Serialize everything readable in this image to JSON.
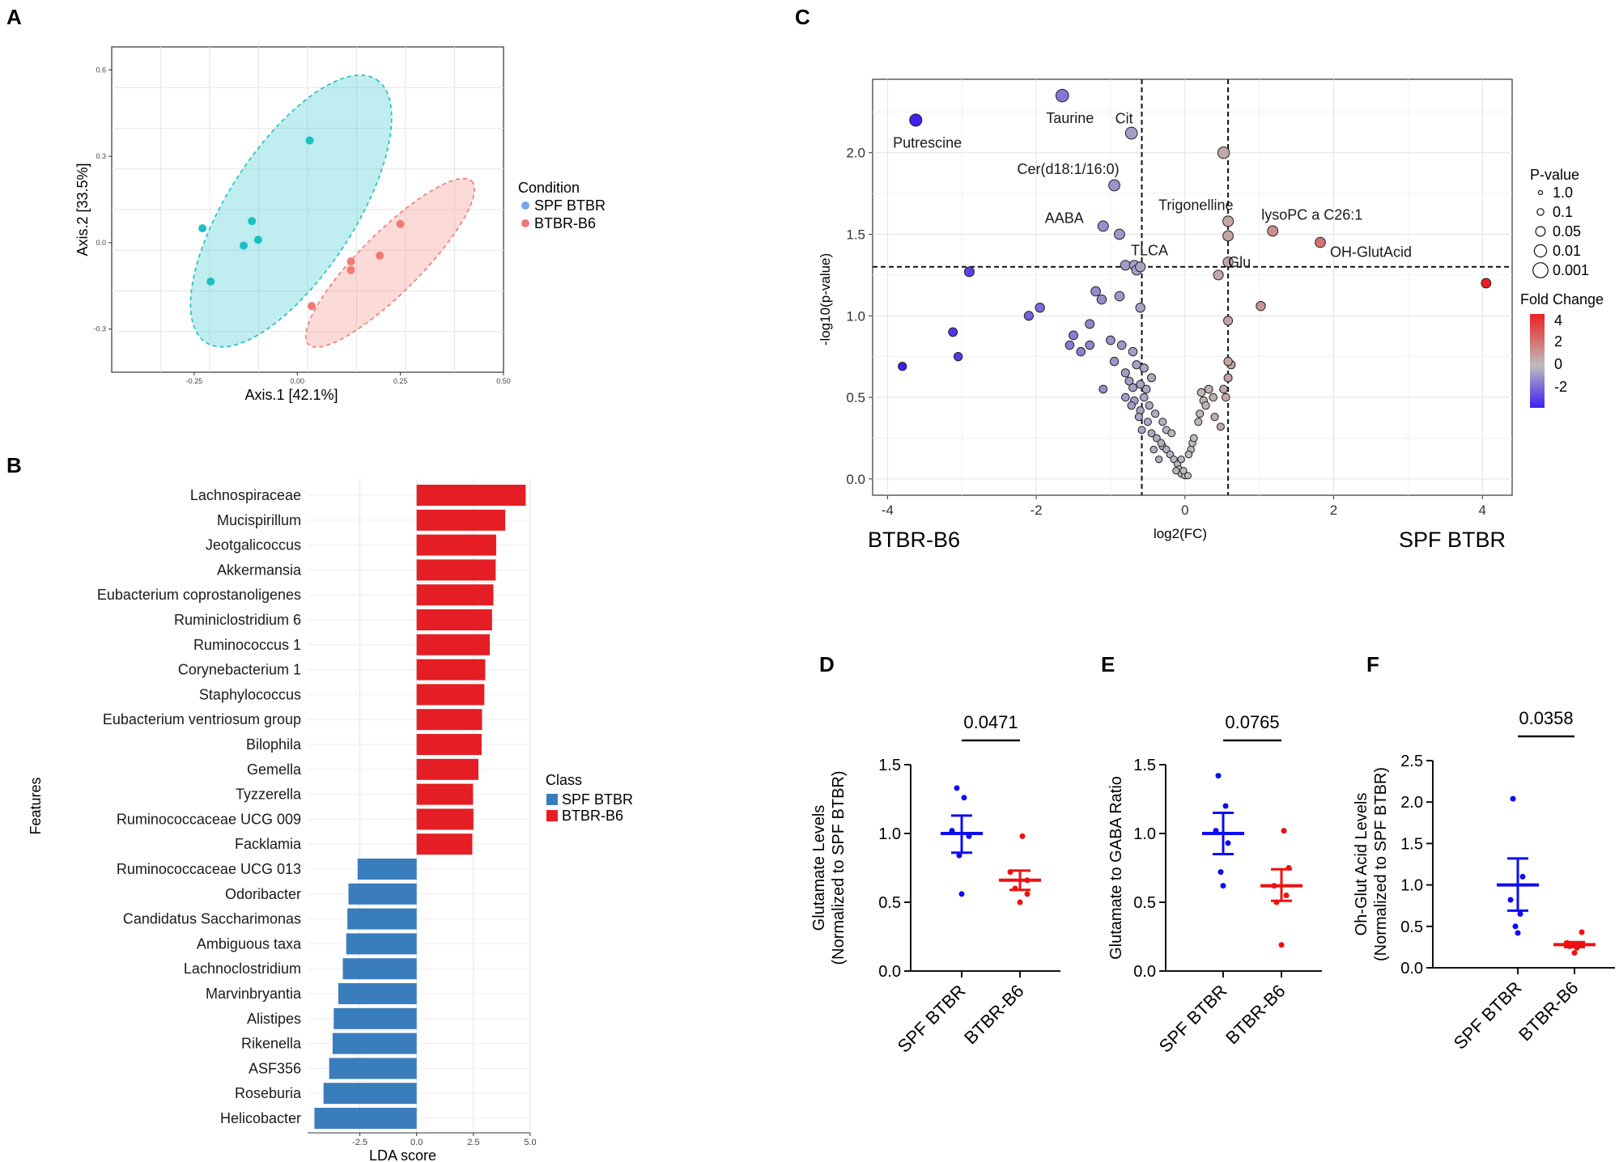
{
  "panel_labels": {
    "A": "A",
    "B": "B",
    "C": "C",
    "D": "D",
    "E": "E",
    "F": "F"
  },
  "colors": {
    "spf_teal": "#1cbfc4",
    "b6_salmon": "#f07a73",
    "lda_red": "#e41e24",
    "lda_blue": "#3a7dbd",
    "stat_blue": "#0d0df0",
    "stat_red": "#ee1111"
  },
  "chart_data": [
    {
      "id": "A",
      "type": "scatter",
      "xlabel": "Axis.1 [42.1%]",
      "ylabel": "Axis.2 [33.5%]",
      "xlim": [
        -0.45,
        0.5
      ],
      "ylim": [
        -0.45,
        0.68
      ],
      "x_ticks": [
        {
          "v": -0.25,
          "label": "-0.25"
        },
        {
          "v": 0.0,
          "label": "0.00"
        },
        {
          "v": 0.25,
          "label": "0.25"
        },
        {
          "v": 0.5,
          "label": "0.50"
        }
      ],
      "y_ticks": [
        {
          "v": -0.3,
          "label": "-0.3"
        },
        {
          "v": 0.0,
          "label": "0.0"
        },
        {
          "v": 0.3,
          "label": "0.3"
        },
        {
          "v": 0.6,
          "label": "0.6"
        }
      ],
      "grid": true,
      "legend_title": "Condition",
      "series": [
        {
          "name": "SPF BTBR",
          "color": "#1cbfc4",
          "legend_color": "#6fa8f0",
          "points": [
            [
              0.03,
              0.355
            ],
            [
              -0.23,
              0.05
            ],
            [
              -0.11,
              0.075
            ],
            [
              -0.13,
              -0.01
            ],
            [
              -0.095,
              0.01
            ],
            [
              -0.21,
              -0.135
            ]
          ],
          "ellipse": {
            "cx": -0.015,
            "cy": 0.11,
            "rx": 0.38,
            "ry": 0.22,
            "rot_deg": 57
          }
        },
        {
          "name": "BTBR-B6",
          "color": "#f07a73",
          "legend_color": "#f07a73",
          "points": [
            [
              0.25,
              0.065
            ],
            [
              0.2,
              -0.045
            ],
            [
              0.13,
              -0.065
            ],
            [
              0.13,
              -0.095
            ],
            [
              0.035,
              -0.22
            ]
          ],
          "ellipse": {
            "cx": 0.225,
            "cy": -0.07,
            "rx": 0.28,
            "ry": 0.105,
            "rot_deg": 45
          }
        }
      ]
    },
    {
      "id": "B",
      "type": "bar",
      "orientation": "horizontal",
      "xlabel": "LDA score",
      "ylabel": "Features",
      "xlim": [
        -4.8,
        5.0
      ],
      "x_ticks": [
        {
          "v": -2.5,
          "label": "-2.5"
        },
        {
          "v": 0.0,
          "label": "0.0"
        },
        {
          "v": 2.5,
          "label": "2.5"
        },
        {
          "v": 5.0,
          "label": "5.0"
        }
      ],
      "grid": true,
      "legend_title": "Class",
      "legend": [
        {
          "name": "SPF BTBR",
          "color": "#3a7dbd"
        },
        {
          "name": "BTBR-B6",
          "color": "#e41e24"
        }
      ],
      "categories": [
        "Lachnospiraceae",
        "Mucispirillum",
        "Jeotgalicoccus",
        "Akkermansia",
        "Eubacterium coprostanoligenes",
        "Ruminiclostridium 6",
        "Ruminococcus 1",
        "Corynebacterium 1",
        "Staphylococcus",
        "Eubacterium ventriosum group",
        "Bilophila",
        "Gemella",
        "Tyzzerella",
        "Ruminococcaceae UCG 009",
        "Facklamia",
        "Ruminococcaceae UCG 013",
        "Odoribacter",
        "Candidatus Saccharimonas",
        "Ambiguous taxa",
        "Lachnoclostridium",
        "Marvinbryantia",
        "Alistipes",
        "Rikenella",
        "ASF356",
        "Roseburia",
        "Helicobacter"
      ],
      "values": [
        4.8,
        3.9,
        3.5,
        3.48,
        3.38,
        3.32,
        3.22,
        3.02,
        2.98,
        2.88,
        2.86,
        2.72,
        2.48,
        2.5,
        2.45,
        -2.6,
        -3.0,
        -3.05,
        -3.1,
        -3.25,
        -3.45,
        -3.65,
        -3.7,
        -3.85,
        -4.1,
        -4.5
      ],
      "classes": [
        "BTBR-B6",
        "BTBR-B6",
        "BTBR-B6",
        "BTBR-B6",
        "BTBR-B6",
        "BTBR-B6",
        "BTBR-B6",
        "BTBR-B6",
        "BTBR-B6",
        "BTBR-B6",
        "BTBR-B6",
        "BTBR-B6",
        "BTBR-B6",
        "BTBR-B6",
        "BTBR-B6",
        "SPF BTBR",
        "SPF BTBR",
        "SPF BTBR",
        "SPF BTBR",
        "SPF BTBR",
        "SPF BTBR",
        "SPF BTBR",
        "SPF BTBR",
        "SPF BTBR",
        "SPF BTBR",
        "SPF BTBR"
      ]
    },
    {
      "id": "C",
      "type": "scatter",
      "title": "",
      "xlabel": "log2(FC)",
      "ylabel": "-log10(p-value)",
      "left_label": "BTBR-B6",
      "right_label": "SPF BTBR",
      "xlim": [
        -4.2,
        4.4
      ],
      "ylim": [
        -0.1,
        2.45
      ],
      "x_ticks": [
        {
          "v": -4,
          "label": "-4"
        },
        {
          "v": -2,
          "label": "-2"
        },
        {
          "v": 0,
          "label": "0"
        },
        {
          "v": 2,
          "label": "2"
        },
        {
          "v": 4,
          "label": "4"
        }
      ],
      "y_ticks": [
        {
          "v": 0.0,
          "label": "0.0"
        },
        {
          "v": 0.5,
          "label": "0.5"
        },
        {
          "v": 1.0,
          "label": "1.0"
        },
        {
          "v": 1.5,
          "label": "1.5"
        },
        {
          "v": 2.0,
          "label": "2.0"
        }
      ],
      "grid": true,
      "thresholds": {
        "x": [
          -0.58,
          0.58
        ],
        "y": 1.3
      },
      "size_legend_title": "P-value",
      "size_legend": [
        "1.0",
        "0.1",
        "0.05",
        "0.01",
        "0.001"
      ],
      "color_legend_title": "Fold Change",
      "color_legend_ticks": [
        "4",
        "2",
        "0",
        "-2"
      ],
      "labels": [
        {
          "text": "Putrescine",
          "x": -3.6,
          "y": 2.2
        },
        {
          "text": "Taurine",
          "x": -1.65,
          "y": 2.35
        },
        {
          "text": "Cit",
          "x": -0.72,
          "y": 2.12
        },
        {
          "text": "Cer(d18:1/16:0)",
          "x": -0.95,
          "y": 1.8
        },
        {
          "text": "AABA",
          "x": -1.1,
          "y": 1.55
        },
        {
          "text": "TLCA",
          "x": -0.88,
          "y": 1.5
        },
        {
          "text": "Trigonelline",
          "x": 0.58,
          "y": 1.58
        },
        {
          "text": "lysoPC a C26:1",
          "x": 1.18,
          "y": 1.52
        },
        {
          "text": "Glu",
          "x": 0.58,
          "y": 1.33
        },
        {
          "text": "OH-GlutAcid",
          "x": 1.82,
          "y": 1.45
        }
      ],
      "points": [
        [
          -3.62,
          2.2,
          0.006
        ],
        [
          -1.65,
          2.35,
          0.004
        ],
        [
          -0.72,
          2.12,
          0.008
        ],
        [
          -0.95,
          1.8,
          0.016
        ],
        [
          -1.1,
          1.55,
          0.028
        ],
        [
          -0.88,
          1.5,
          0.032
        ],
        [
          0.52,
          2.0,
          0.01
        ],
        [
          0.58,
          1.58,
          0.026
        ],
        [
          1.18,
          1.52,
          0.03
        ],
        [
          0.58,
          1.33,
          0.047
        ],
        [
          1.82,
          1.45,
          0.035
        ],
        [
          4.05,
          1.2,
          0.063
        ],
        [
          -2.9,
          1.27,
          0.054
        ],
        [
          -0.8,
          1.31,
          0.049
        ],
        [
          -0.68,
          1.31,
          0.049
        ],
        [
          -0.65,
          1.28,
          0.052
        ],
        [
          -0.6,
          1.3,
          0.05
        ],
        [
          0.45,
          1.25,
          0.056
        ],
        [
          0.58,
          1.49,
          0.032
        ],
        [
          1.02,
          1.06,
          0.087
        ],
        [
          -1.95,
          1.05,
          0.089
        ],
        [
          -2.1,
          1.0,
          0.1
        ],
        [
          -3.12,
          0.9,
          0.126
        ],
        [
          -3.05,
          0.75,
          0.178
        ],
        [
          -3.8,
          0.69,
          0.2
        ],
        [
          -0.88,
          1.12,
          0.076
        ],
        [
          -1.12,
          1.1,
          0.079
        ],
        [
          -1.2,
          1.15,
          0.07
        ],
        [
          -0.6,
          1.05,
          0.089
        ],
        [
          -1.5,
          0.88,
          0.13
        ],
        [
          -1.4,
          0.78,
          0.166
        ],
        [
          -1.28,
          0.82,
          0.15
        ],
        [
          -1.0,
          0.85,
          0.14
        ],
        [
          -0.85,
          0.82,
          0.15
        ],
        [
          -0.7,
          0.78,
          0.166
        ],
        [
          -0.65,
          0.7,
          0.2
        ],
        [
          -0.55,
          0.68,
          0.21
        ],
        [
          -0.45,
          0.62,
          0.24
        ],
        [
          -0.8,
          0.65,
          0.22
        ],
        [
          -0.95,
          0.72,
          0.19
        ],
        [
          -1.55,
          0.82,
          0.15
        ],
        [
          -1.28,
          0.95,
          0.11
        ],
        [
          -1.1,
          0.55,
          0.28
        ],
        [
          -0.7,
          0.56,
          0.27
        ],
        [
          -0.75,
          0.6,
          0.25
        ],
        [
          -0.6,
          0.58,
          0.26
        ],
        [
          -0.55,
          0.5,
          0.32
        ],
        [
          -0.8,
          0.5,
          0.32
        ],
        [
          -0.68,
          0.48,
          0.33
        ],
        [
          -0.6,
          0.42,
          0.38
        ],
        [
          -0.72,
          0.45,
          0.35
        ],
        [
          -0.62,
          0.38,
          0.42
        ],
        [
          -0.5,
          0.35,
          0.45
        ],
        [
          -0.58,
          0.3,
          0.5
        ],
        [
          -0.45,
          0.28,
          0.52
        ],
        [
          -0.38,
          0.25,
          0.56
        ],
        [
          -0.3,
          0.2,
          0.63
        ],
        [
          -0.25,
          0.18,
          0.66
        ],
        [
          -0.2,
          0.15,
          0.7
        ],
        [
          -0.15,
          0.12,
          0.76
        ],
        [
          -0.1,
          0.09,
          0.81
        ],
        [
          -0.08,
          0.06,
          0.87
        ],
        [
          -0.05,
          0.03,
          0.93
        ],
        [
          0.0,
          0.02,
          0.95
        ],
        [
          0.04,
          0.02,
          0.95
        ],
        [
          -0.02,
          0.05,
          0.89
        ],
        [
          -0.12,
          0.05,
          0.89
        ],
        [
          -0.05,
          0.12,
          0.76
        ],
        [
          0.08,
          0.18,
          0.66
        ],
        [
          0.05,
          0.15,
          0.7
        ],
        [
          0.1,
          0.22,
          0.6
        ],
        [
          -0.32,
          0.22,
          0.6
        ],
        [
          -0.42,
          0.18,
          0.66
        ],
        [
          -0.35,
          0.12,
          0.76
        ],
        [
          0.12,
          0.25,
          0.56
        ],
        [
          0.18,
          0.35,
          0.45
        ],
        [
          0.2,
          0.4,
          0.4
        ],
        [
          0.25,
          0.48,
          0.33
        ],
        [
          0.22,
          0.53,
          0.3
        ],
        [
          0.32,
          0.55,
          0.28
        ],
        [
          0.38,
          0.5,
          0.32
        ],
        [
          0.28,
          0.45,
          0.35
        ],
        [
          0.4,
          0.38,
          0.42
        ],
        [
          0.48,
          0.32,
          0.48
        ],
        [
          0.55,
          0.5,
          0.32
        ],
        [
          0.58,
          0.62,
          0.24
        ],
        [
          0.62,
          0.7,
          0.2
        ],
        [
          0.58,
          0.72,
          0.19
        ],
        [
          0.58,
          0.97,
          0.11
        ],
        [
          0.52,
          0.55,
          0.28
        ],
        [
          -0.25,
          0.3,
          0.5
        ],
        [
          -0.18,
          0.28,
          0.52
        ],
        [
          -0.4,
          0.4,
          0.4
        ],
        [
          -0.48,
          0.45,
          0.35
        ],
        [
          -0.52,
          0.55,
          0.28
        ],
        [
          -0.3,
          0.35,
          0.45
        ]
      ]
    },
    {
      "id": "D",
      "type": "scatter",
      "ylabel": "Glutamate Levels",
      "ylabel_line2": "(Normalized to SPF BTBR)",
      "ylim": [
        0,
        1.5
      ],
      "y_ticks": [
        {
          "v": 0.0,
          "label": "0.0"
        },
        {
          "v": 0.5,
          "label": "0.5"
        },
        {
          "v": 1.0,
          "label": "1.0"
        },
        {
          "v": 1.5,
          "label": "1.5"
        }
      ],
      "categories": [
        "SPF BTBR",
        "BTBR-B6"
      ],
      "pvalue": "0.0471",
      "groups": [
        {
          "name": "SPF BTBR",
          "color": "#0d0df0",
          "mean": 1.0,
          "sem_low": 0.86,
          "sem_high": 1.13,
          "points": [
            [
              -0.02,
              1.33
            ],
            [
              0.01,
              1.26
            ],
            [
              -0.04,
              1.02
            ],
            [
              0.03,
              0.98
            ],
            [
              -0.01,
              0.84
            ],
            [
              0.0,
              0.56
            ]
          ]
        },
        {
          "name": "BTBR-B6",
          "color": "#ee1111",
          "mean": 0.66,
          "sem_low": 0.59,
          "sem_high": 0.73,
          "points": [
            [
              0.01,
              0.98
            ],
            [
              -0.04,
              0.72
            ],
            [
              0.03,
              0.66
            ],
            [
              -0.02,
              0.6
            ],
            [
              0.03,
              0.56
            ],
            [
              0.0,
              0.5
            ]
          ]
        }
      ]
    },
    {
      "id": "E",
      "type": "scatter",
      "ylabel": "Glutamate to GABA Ratio",
      "ylim": [
        0,
        1.5
      ],
      "y_ticks": [
        {
          "v": 0.0,
          "label": "0.0"
        },
        {
          "v": 0.5,
          "label": "0.5"
        },
        {
          "v": 1.0,
          "label": "1.0"
        },
        {
          "v": 1.5,
          "label": "1.5"
        }
      ],
      "categories": [
        "SPF BTBR",
        "BTBR-B6"
      ],
      "pvalue": "0.0765",
      "groups": [
        {
          "name": "SPF BTBR",
          "color": "#0d0df0",
          "mean": 1.0,
          "sem_low": 0.85,
          "sem_high": 1.15,
          "points": [
            [
              -0.02,
              1.42
            ],
            [
              0.01,
              1.2
            ],
            [
              -0.03,
              1.02
            ],
            [
              0.02,
              0.93
            ],
            [
              -0.01,
              0.72
            ],
            [
              0.0,
              0.62
            ]
          ]
        },
        {
          "name": "BTBR-B6",
          "color": "#ee1111",
          "mean": 0.62,
          "sem_low": 0.51,
          "sem_high": 0.74,
          "points": [
            [
              0.01,
              1.02
            ],
            [
              0.03,
              0.75
            ],
            [
              -0.03,
              0.62
            ],
            [
              0.02,
              0.55
            ],
            [
              -0.02,
              0.5
            ],
            [
              0.0,
              0.19
            ]
          ]
        }
      ]
    },
    {
      "id": "F",
      "type": "scatter",
      "ylabel": "Oh-Glut Acid Levels",
      "ylabel_line2": "(Normalized to SPF BTBR)",
      "ylim": [
        0,
        2.5
      ],
      "y_ticks": [
        {
          "v": 0.0,
          "label": "0.0"
        },
        {
          "v": 0.5,
          "label": "0.5"
        },
        {
          "v": 1.0,
          "label": "1.0"
        },
        {
          "v": 1.5,
          "label": "1.5"
        },
        {
          "v": 2.0,
          "label": "2.0"
        },
        {
          "v": 2.5,
          "label": "2.5"
        }
      ],
      "categories": [
        "SPF BTBR",
        "BTBR-B6"
      ],
      "pvalue": "0.0358",
      "groups": [
        {
          "name": "SPF BTBR",
          "color": "#0d0df0",
          "mean": 1.0,
          "sem_low": 0.69,
          "sem_high": 1.32,
          "points": [
            [
              -0.02,
              2.04
            ],
            [
              0.02,
              1.1
            ],
            [
              -0.03,
              0.82
            ],
            [
              0.01,
              0.65
            ],
            [
              -0.01,
              0.5
            ],
            [
              0.0,
              0.42
            ]
          ]
        },
        {
          "name": "BTBR-B6",
          "color": "#ee1111",
          "mean": 0.28,
          "sem_low": 0.25,
          "sem_high": 0.31,
          "points": [
            [
              0.03,
              0.43
            ],
            [
              -0.03,
              0.3
            ],
            [
              0.02,
              0.28
            ],
            [
              -0.02,
              0.26
            ],
            [
              0.01,
              0.24
            ],
            [
              0.0,
              0.18
            ]
          ]
        }
      ]
    }
  ]
}
